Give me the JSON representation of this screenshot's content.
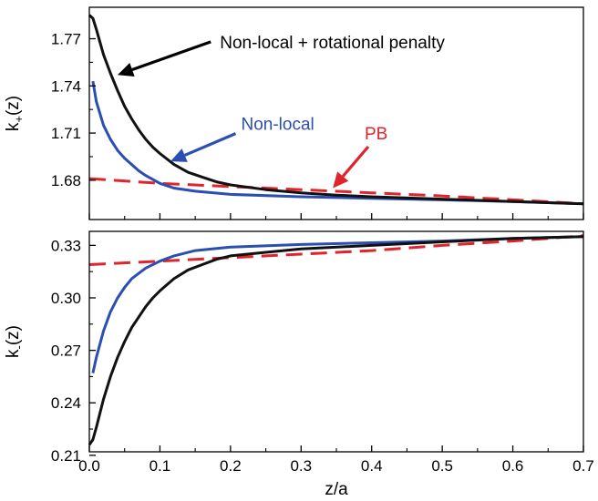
{
  "chart_data": [
    {
      "type": "line",
      "panel": "top",
      "ylabel_main": "k",
      "ylabel_sub": "+",
      "ylabel_tail": "(z)",
      "xlim": [
        0.0,
        0.7
      ],
      "ylim": [
        1.655,
        1.79
      ],
      "yticks": [
        1.68,
        1.71,
        1.74,
        1.77
      ],
      "ytick_labels": [
        "1.68",
        "1.71",
        "1.74",
        "1.77"
      ],
      "grid": false,
      "series": [
        {
          "name": "Non-local + rotational penalty",
          "color": "#111111",
          "style": "solid",
          "x": [
            0.0,
            0.005,
            0.01,
            0.02,
            0.03,
            0.04,
            0.05,
            0.06,
            0.07,
            0.08,
            0.09,
            0.1,
            0.12,
            0.14,
            0.16,
            0.18,
            0.2,
            0.25,
            0.3,
            0.35,
            0.4,
            0.5,
            0.6,
            0.7
          ],
          "y": [
            1.785,
            1.783,
            1.776,
            1.76,
            1.748,
            1.737,
            1.727,
            1.719,
            1.712,
            1.706,
            1.701,
            1.697,
            1.69,
            1.685,
            1.682,
            1.679,
            1.677,
            1.674,
            1.672,
            1.6705,
            1.6695,
            1.668,
            1.6665,
            1.665
          ]
        },
        {
          "name": "Non-local",
          "color": "#2b4fb0",
          "style": "solid",
          "x": [
            0.005,
            0.01,
            0.02,
            0.03,
            0.04,
            0.05,
            0.06,
            0.07,
            0.08,
            0.1,
            0.12,
            0.15,
            0.2,
            0.3,
            0.4,
            0.5,
            0.6,
            0.7
          ],
          "y": [
            1.743,
            1.73,
            1.715,
            1.706,
            1.699,
            1.694,
            1.69,
            1.686,
            1.683,
            1.678,
            1.675,
            1.673,
            1.671,
            1.6695,
            1.6685,
            1.6675,
            1.6665,
            1.665
          ]
        },
        {
          "name": "PB",
          "color": "#e0242b",
          "style": "dashed",
          "x": [
            0.0,
            0.1,
            0.2,
            0.3,
            0.4,
            0.5,
            0.6,
            0.7
          ],
          "y": [
            1.681,
            1.678,
            1.676,
            1.674,
            1.672,
            1.67,
            1.6675,
            1.665
          ]
        }
      ],
      "annotations": [
        {
          "text": "Non-local + rotational penalty",
          "color": "#000000",
          "x": 0.185,
          "y": 1.764,
          "arrow_to": [
            0.04,
            1.747
          ],
          "arrow_color": "#000000"
        },
        {
          "text": "Non-local",
          "color": "#2b4fb0",
          "x": 0.215,
          "y": 1.712,
          "arrow_to": [
            0.115,
            1.692
          ],
          "arrow_color": "#2b4fb0"
        },
        {
          "text": "PB",
          "color": "#e0242b",
          "x": 0.39,
          "y": 1.706,
          "arrow_to": [
            0.345,
            1.675
          ],
          "arrow_color": "#e0242b"
        }
      ]
    },
    {
      "type": "line",
      "panel": "bottom",
      "ylabel_main": "k",
      "ylabel_sub": "-",
      "ylabel_tail": "(z)",
      "xlabel": "z/a",
      "xlim": [
        0.0,
        0.7
      ],
      "ylim": [
        0.212,
        0.338
      ],
      "yticks": [
        0.21,
        0.24,
        0.27,
        0.3,
        0.33
      ],
      "ytick_labels": [
        "0.21",
        "0.24",
        "0.27",
        "0.30",
        "0.33"
      ],
      "xticks": [
        0.0,
        0.1,
        0.2,
        0.3,
        0.4,
        0.5,
        0.6,
        0.7
      ],
      "xtick_labels": [
        "0.0",
        "0.1",
        "0.2",
        "0.3",
        "0.4",
        "0.5",
        "0.6",
        "0.7"
      ],
      "grid": false,
      "series": [
        {
          "name": "Non-local + rotational penalty",
          "color": "#111111",
          "style": "solid",
          "x": [
            0.0,
            0.005,
            0.01,
            0.02,
            0.03,
            0.04,
            0.05,
            0.06,
            0.07,
            0.08,
            0.09,
            0.1,
            0.12,
            0.14,
            0.16,
            0.18,
            0.2,
            0.25,
            0.3,
            0.4,
            0.5,
            0.6,
            0.7
          ],
          "y": [
            0.216,
            0.219,
            0.226,
            0.242,
            0.255,
            0.266,
            0.275,
            0.283,
            0.289,
            0.295,
            0.3,
            0.304,
            0.311,
            0.316,
            0.319,
            0.322,
            0.324,
            0.326,
            0.328,
            0.33,
            0.332,
            0.334,
            0.335
          ]
        },
        {
          "name": "Non-local",
          "color": "#2b4fb0",
          "style": "solid",
          "x": [
            0.005,
            0.01,
            0.02,
            0.03,
            0.04,
            0.05,
            0.06,
            0.07,
            0.08,
            0.1,
            0.12,
            0.15,
            0.2,
            0.3,
            0.4,
            0.5,
            0.6,
            0.7
          ],
          "y": [
            0.257,
            0.266,
            0.281,
            0.292,
            0.3,
            0.306,
            0.311,
            0.314,
            0.317,
            0.321,
            0.324,
            0.327,
            0.329,
            0.3305,
            0.3315,
            0.3325,
            0.334,
            0.335
          ]
        },
        {
          "name": "PB",
          "color": "#e0242b",
          "style": "dashed",
          "x": [
            0.0,
            0.1,
            0.2,
            0.3,
            0.4,
            0.5,
            0.6,
            0.7
          ],
          "y": [
            0.319,
            0.321,
            0.323,
            0.325,
            0.327,
            0.33,
            0.3325,
            0.3355
          ]
        }
      ]
    }
  ]
}
